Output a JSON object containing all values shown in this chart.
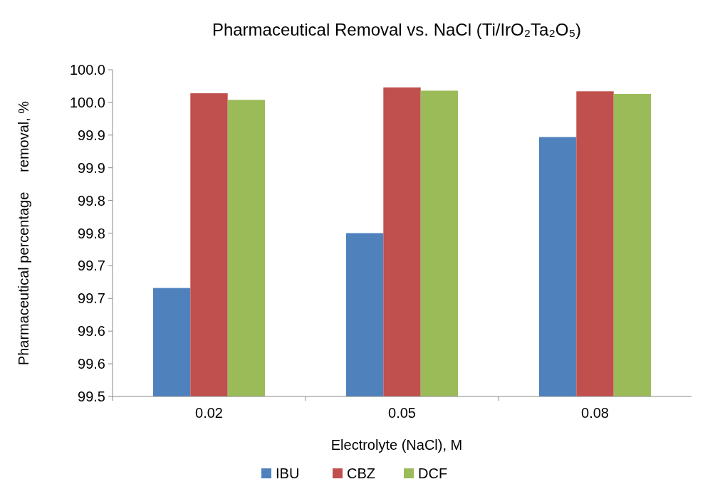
{
  "chart_data": {
    "type": "bar",
    "title": "Pharmaceutical Removal vs.  NaCl (Ti/IrO₂Ta₂O₅)",
    "xlabel": "Electrolyte (NaCl), M",
    "ylabel": "Pharmaceutical percentage     removal, %",
    "categories": [
      "0.02",
      "0.05",
      "0.08"
    ],
    "series": [
      {
        "name": "IBU",
        "color": "#4f81bd",
        "values": [
          99.666,
          99.75,
          99.897
        ]
      },
      {
        "name": "CBZ",
        "color": "#c0504d",
        "values": [
          99.964,
          99.973,
          99.967
        ]
      },
      {
        "name": "DCF",
        "color": "#9bbb59",
        "values": [
          99.954,
          99.968,
          99.963
        ]
      }
    ],
    "ylim": [
      99.5,
      100.0
    ],
    "yticks": [
      99.5,
      {
        "value": 99.55,
        "label": "99.6"
      },
      99.6,
      {
        "value": 99.65,
        "label": "99.7"
      },
      99.7,
      {
        "value": 99.75,
        "label": "99.8"
      },
      99.8,
      {
        "value": 99.85,
        "label": "99.9"
      },
      99.9,
      {
        "value": 99.95,
        "label": "100.0"
      },
      {
        "value": 100.0,
        "label": "100.0"
      }
    ],
    "legend": "bottom",
    "grid": false
  }
}
